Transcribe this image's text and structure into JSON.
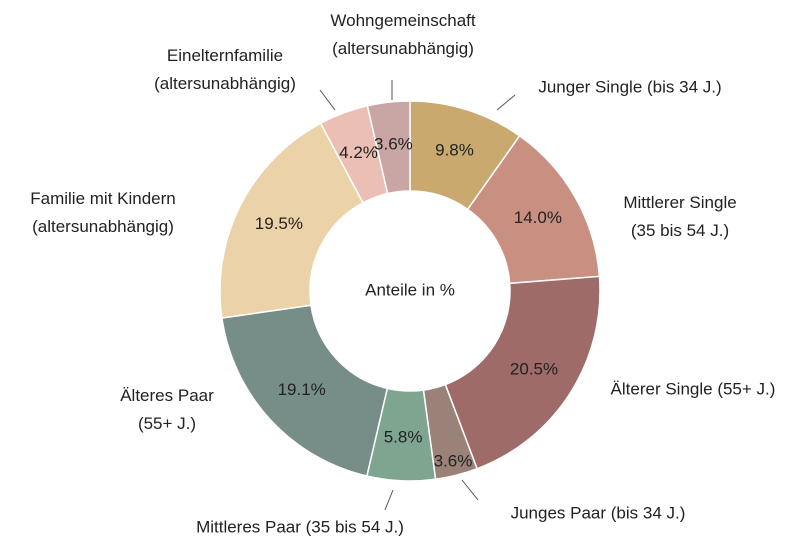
{
  "chart_data": {
    "type": "donut",
    "center_label": "Anteile in %",
    "categories": [
      "Junger Single (bis 34 J.)",
      "Mittlerer Single\n(35 bis 54 J.)",
      "Älterer Single (55+ J.)",
      "Junges Paar (bis 34 J.)",
      "Mittleres Paar (35 bis 54 J.)",
      "Älteres Paar\n(55+ J.)",
      "Familie mit Kindern\n(altersunabhängig)",
      "Einelternfamilie\n(altersunabhängig)",
      "Wohngemeinschaft\n(altersunabhängig)"
    ],
    "values": [
      9.8,
      14,
      20.5,
      3.6,
      5.8,
      19.1,
      19.5,
      4.2,
      3.6
    ],
    "value_labels": [
      "9.8%",
      "14.0%",
      "20.5%",
      "3.6%",
      "5.8%",
      "19.1%",
      "19.5%",
      "4.2%",
      "3.6%"
    ],
    "colors": [
      "#c9a96e",
      "#c98f80",
      "#9e6b68",
      "#9a8278",
      "#7ea58f",
      "#778e88",
      "#ecd2a8",
      "#ebbfb3",
      "#c9a5a3"
    ]
  }
}
